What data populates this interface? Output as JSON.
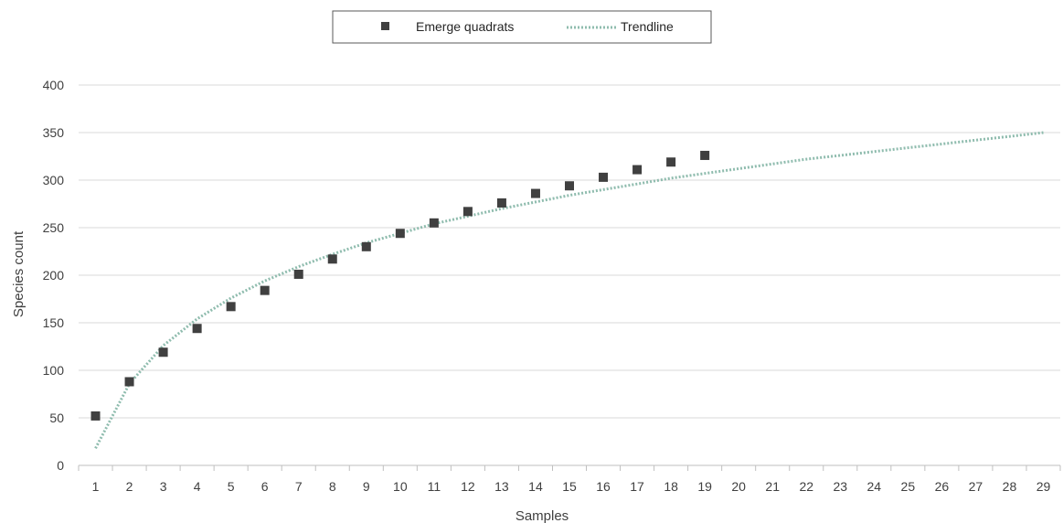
{
  "chart_data": {
    "type": "scatter",
    "title": "",
    "xlabel": "Samples",
    "ylabel": "Species count",
    "x_categories": [
      "1",
      "2",
      "3",
      "4",
      "5",
      "6",
      "7",
      "8",
      "9",
      "10",
      "11",
      "12",
      "13",
      "14",
      "15",
      "16",
      "17",
      "18",
      "19",
      "20",
      "21",
      "22",
      "23",
      "24",
      "25",
      "26",
      "27",
      "28",
      "29"
    ],
    "ylim": [
      0,
      400
    ],
    "yticks": [
      0,
      50,
      100,
      150,
      200,
      250,
      300,
      350,
      400
    ],
    "grid": "horizontal",
    "legend_position": "top",
    "series": [
      {
        "name": "Emerge quadrats",
        "kind": "markers",
        "marker": "square",
        "color": "#404040",
        "x": [
          1,
          2,
          3,
          4,
          5,
          6,
          7,
          8,
          9,
          10,
          11,
          12,
          13,
          14,
          15,
          16,
          17,
          18,
          19
        ],
        "y": [
          52,
          88,
          119,
          144,
          167,
          184,
          201,
          217,
          230,
          244,
          255,
          267,
          276,
          286,
          294,
          303,
          311,
          319,
          326
        ]
      },
      {
        "name": "Trendline",
        "kind": "dotted-line",
        "color": "#8fbcae",
        "x": [
          1,
          2,
          3,
          4,
          5,
          6,
          7,
          8,
          9,
          10,
          11,
          12,
          13,
          14,
          15,
          16,
          17,
          18,
          19,
          20,
          21,
          22,
          23,
          24,
          25,
          26,
          27,
          28,
          29
        ],
        "y": [
          18,
          86,
          126,
          154,
          176,
          194,
          209,
          222,
          234,
          244,
          254,
          262,
          270,
          277,
          284,
          290,
          296,
          302,
          307,
          312,
          317,
          322,
          326,
          330,
          334,
          338,
          342,
          346,
          350
        ]
      }
    ]
  }
}
